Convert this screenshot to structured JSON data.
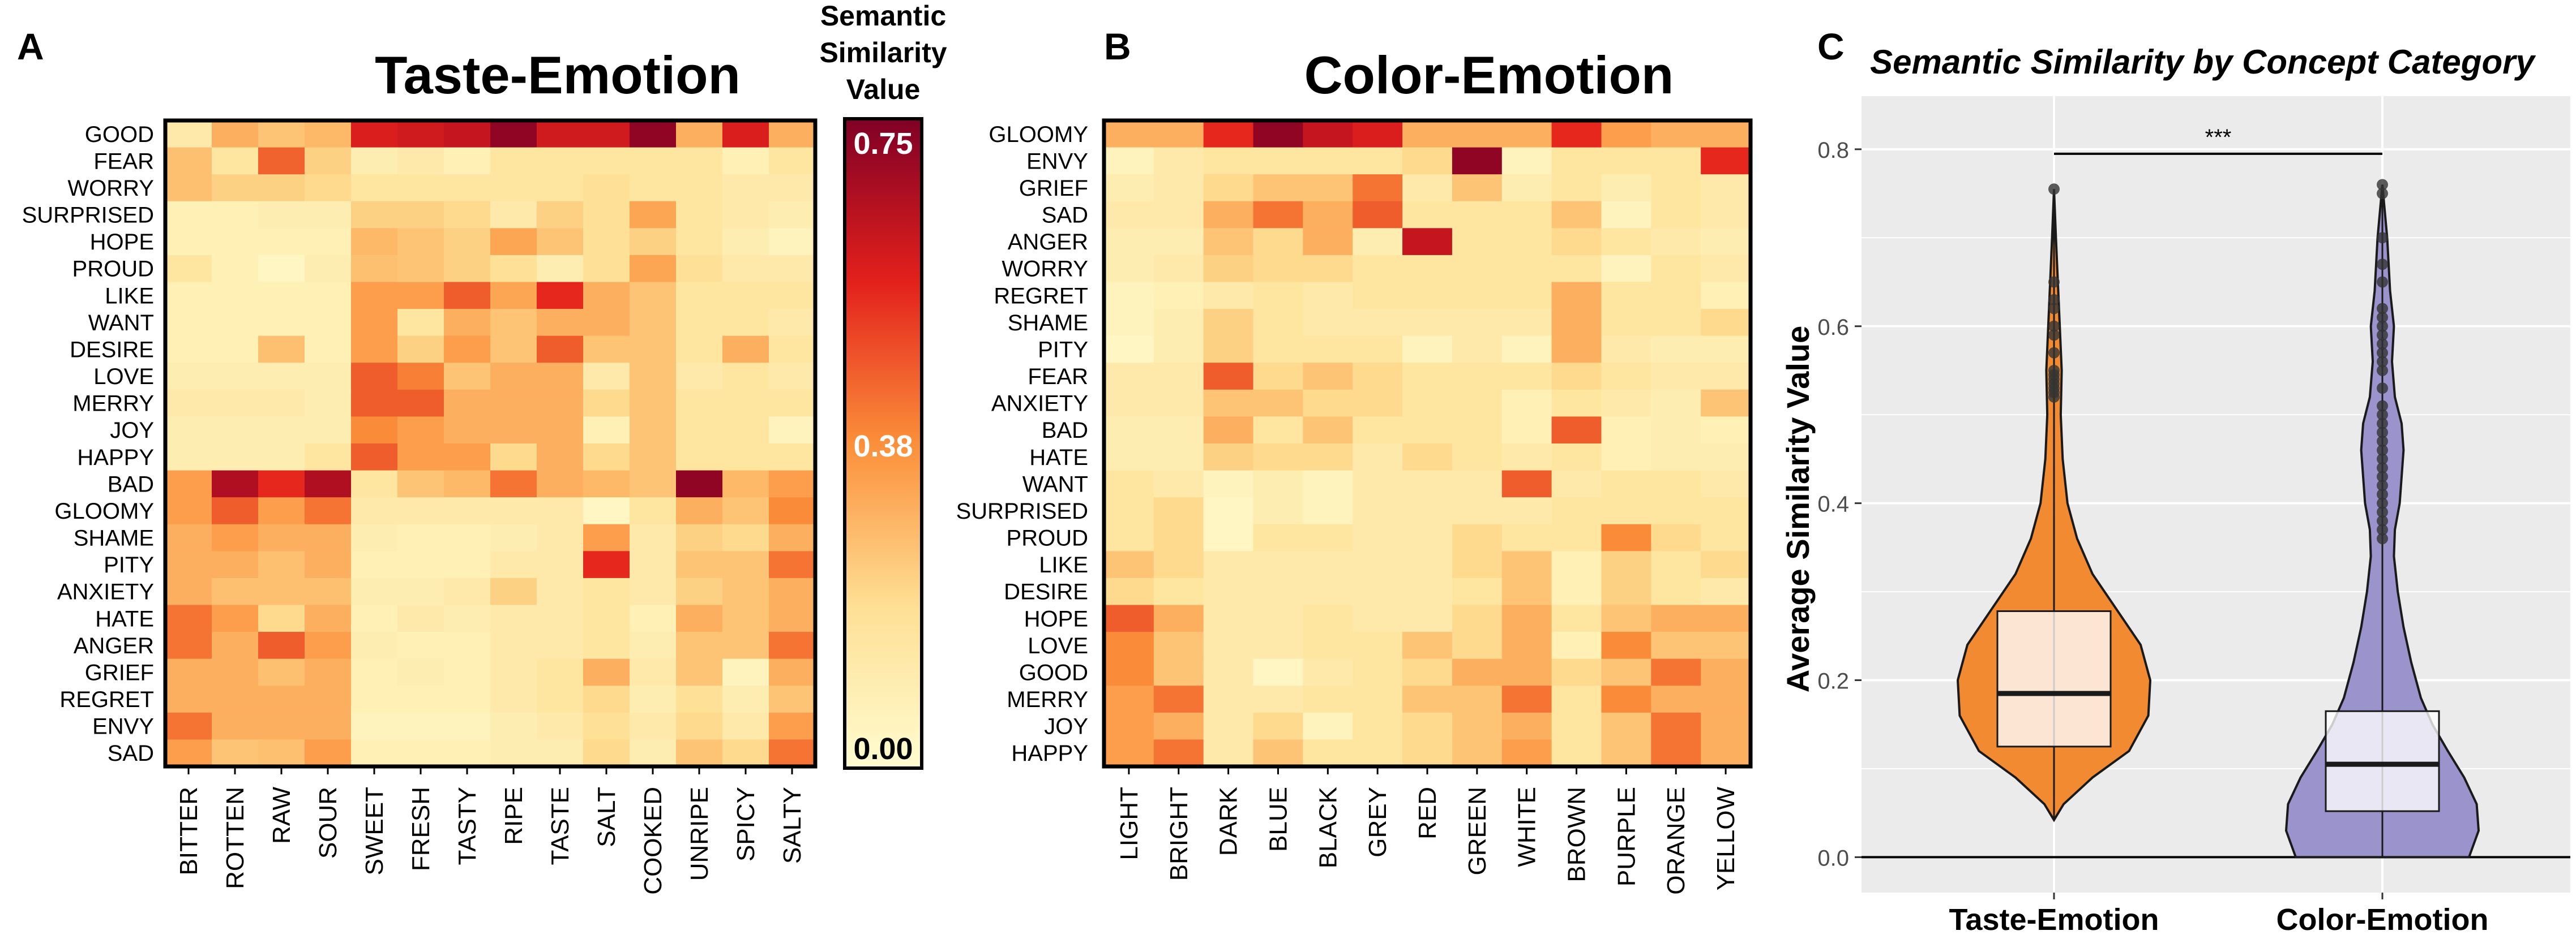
{
  "chart_data": [
    {
      "panel": "A",
      "type": "heatmap",
      "title": "Taste-Emotion",
      "rows": [
        "GOOD",
        "FEAR",
        "WORRY",
        "SURPRISED",
        "HOPE",
        "PROUD",
        "LIKE",
        "WANT",
        "DESIRE",
        "LOVE",
        "MERRY",
        "JOY",
        "HAPPY",
        "BAD",
        "GLOOMY",
        "SHAME",
        "PITY",
        "ANXIETY",
        "HATE",
        "ANGER",
        "GRIEF",
        "REGRET",
        "ENVY",
        "SAD"
      ],
      "columns": [
        "BITTER",
        "ROTTEN",
        "RAW",
        "SOUR",
        "SWEET",
        "FRESH",
        "TASTY",
        "RIPE",
        "TASTE",
        "SALT",
        "COOKED",
        "UNRIPE",
        "SPICY",
        "SALTY"
      ],
      "values": [
        [
          0.12,
          0.3,
          0.25,
          0.28,
          0.58,
          0.6,
          0.62,
          0.72,
          0.6,
          0.6,
          0.72,
          0.3,
          0.58,
          0.3
        ],
        [
          0.26,
          0.15,
          0.45,
          0.22,
          0.1,
          0.12,
          0.08,
          0.15,
          0.15,
          0.15,
          0.15,
          0.15,
          0.08,
          0.15
        ],
        [
          0.26,
          0.22,
          0.22,
          0.2,
          0.15,
          0.15,
          0.15,
          0.15,
          0.15,
          0.18,
          0.15,
          0.15,
          0.12,
          0.12
        ],
        [
          0.08,
          0.08,
          0.1,
          0.1,
          0.22,
          0.22,
          0.2,
          0.12,
          0.22,
          0.18,
          0.32,
          0.15,
          0.12,
          0.1
        ],
        [
          0.08,
          0.08,
          0.08,
          0.08,
          0.28,
          0.25,
          0.22,
          0.32,
          0.25,
          0.18,
          0.22,
          0.15,
          0.1,
          0.06
        ],
        [
          0.15,
          0.08,
          0.04,
          0.1,
          0.26,
          0.25,
          0.22,
          0.18,
          0.1,
          0.18,
          0.32,
          0.18,
          0.12,
          0.12
        ],
        [
          0.08,
          0.08,
          0.08,
          0.08,
          0.34,
          0.34,
          0.46,
          0.32,
          0.55,
          0.3,
          0.25,
          0.15,
          0.15,
          0.15
        ],
        [
          0.08,
          0.08,
          0.08,
          0.08,
          0.34,
          0.15,
          0.3,
          0.25,
          0.3,
          0.3,
          0.25,
          0.15,
          0.15,
          0.12
        ],
        [
          0.08,
          0.08,
          0.26,
          0.08,
          0.34,
          0.22,
          0.34,
          0.25,
          0.46,
          0.25,
          0.25,
          0.15,
          0.3,
          0.15
        ],
        [
          0.1,
          0.1,
          0.1,
          0.1,
          0.46,
          0.4,
          0.25,
          0.3,
          0.3,
          0.12,
          0.25,
          0.12,
          0.15,
          0.12
        ],
        [
          0.12,
          0.12,
          0.12,
          0.1,
          0.46,
          0.46,
          0.3,
          0.3,
          0.3,
          0.2,
          0.25,
          0.15,
          0.15,
          0.15
        ],
        [
          0.1,
          0.1,
          0.1,
          0.1,
          0.38,
          0.34,
          0.3,
          0.3,
          0.3,
          0.08,
          0.25,
          0.15,
          0.15,
          0.06
        ],
        [
          0.1,
          0.1,
          0.1,
          0.15,
          0.46,
          0.34,
          0.34,
          0.2,
          0.3,
          0.2,
          0.25,
          0.15,
          0.15,
          0.15
        ],
        [
          0.34,
          0.66,
          0.55,
          0.66,
          0.15,
          0.25,
          0.28,
          0.42,
          0.3,
          0.28,
          0.25,
          0.72,
          0.28,
          0.34
        ],
        [
          0.34,
          0.46,
          0.34,
          0.42,
          0.12,
          0.12,
          0.12,
          0.12,
          0.12,
          0.04,
          0.15,
          0.3,
          0.25,
          0.38
        ],
        [
          0.3,
          0.34,
          0.3,
          0.3,
          0.1,
          0.08,
          0.08,
          0.1,
          0.12,
          0.34,
          0.12,
          0.22,
          0.2,
          0.3
        ],
        [
          0.3,
          0.3,
          0.26,
          0.3,
          0.08,
          0.08,
          0.08,
          0.12,
          0.12,
          0.55,
          0.12,
          0.25,
          0.25,
          0.42
        ],
        [
          0.3,
          0.26,
          0.26,
          0.26,
          0.1,
          0.1,
          0.12,
          0.22,
          0.12,
          0.15,
          0.12,
          0.22,
          0.25,
          0.3
        ],
        [
          0.42,
          0.34,
          0.2,
          0.3,
          0.08,
          0.12,
          0.1,
          0.12,
          0.12,
          0.15,
          0.08,
          0.3,
          0.25,
          0.3
        ],
        [
          0.42,
          0.3,
          0.46,
          0.34,
          0.1,
          0.08,
          0.08,
          0.12,
          0.12,
          0.15,
          0.1,
          0.25,
          0.25,
          0.42
        ],
        [
          0.3,
          0.3,
          0.26,
          0.3,
          0.08,
          0.1,
          0.08,
          0.12,
          0.15,
          0.3,
          0.12,
          0.25,
          0.06,
          0.3
        ],
        [
          0.3,
          0.3,
          0.3,
          0.3,
          0.08,
          0.08,
          0.08,
          0.12,
          0.15,
          0.2,
          0.1,
          0.18,
          0.1,
          0.25
        ],
        [
          0.42,
          0.3,
          0.3,
          0.3,
          0.06,
          0.06,
          0.06,
          0.1,
          0.12,
          0.18,
          0.12,
          0.2,
          0.12,
          0.34
        ],
        [
          0.34,
          0.25,
          0.26,
          0.34,
          0.08,
          0.08,
          0.08,
          0.1,
          0.1,
          0.2,
          0.1,
          0.25,
          0.2,
          0.42
        ]
      ]
    },
    {
      "panel": "B",
      "type": "heatmap",
      "title": "Color-Emotion",
      "rows": [
        "GLOOMY",
        "ENVY",
        "GRIEF",
        "SAD",
        "ANGER",
        "WORRY",
        "REGRET",
        "SHAME",
        "PITY",
        "FEAR",
        "ANXIETY",
        "BAD",
        "HATE",
        "WANT",
        "SURPRISED",
        "PROUD",
        "LIKE",
        "DESIRE",
        "HOPE",
        "LOVE",
        "GOOD",
        "MERRY",
        "JOY",
        "HAPPY"
      ],
      "columns": [
        "LIGHT",
        "BRIGHT",
        "DARK",
        "BLUE",
        "BLACK",
        "GREY",
        "RED",
        "GREEN",
        "WHITE",
        "BROWN",
        "PURPLE",
        "ORANGE",
        "YELLOW"
      ],
      "values": [
        [
          0.3,
          0.3,
          0.55,
          0.72,
          0.62,
          0.58,
          0.3,
          0.3,
          0.3,
          0.55,
          0.34,
          0.3,
          0.3
        ],
        [
          0.06,
          0.12,
          0.15,
          0.15,
          0.15,
          0.15,
          0.2,
          0.72,
          0.06,
          0.15,
          0.15,
          0.15,
          0.55
        ],
        [
          0.1,
          0.12,
          0.2,
          0.25,
          0.25,
          0.42,
          0.12,
          0.25,
          0.1,
          0.15,
          0.1,
          0.15,
          0.12
        ],
        [
          0.12,
          0.12,
          0.3,
          0.42,
          0.3,
          0.46,
          0.15,
          0.15,
          0.15,
          0.25,
          0.06,
          0.15,
          0.12
        ],
        [
          0.1,
          0.1,
          0.25,
          0.2,
          0.3,
          0.1,
          0.62,
          0.15,
          0.15,
          0.2,
          0.15,
          0.12,
          0.1
        ],
        [
          0.1,
          0.12,
          0.22,
          0.2,
          0.2,
          0.15,
          0.15,
          0.15,
          0.15,
          0.15,
          0.06,
          0.15,
          0.12
        ],
        [
          0.06,
          0.08,
          0.12,
          0.15,
          0.12,
          0.15,
          0.15,
          0.15,
          0.15,
          0.3,
          0.15,
          0.15,
          0.08
        ],
        [
          0.06,
          0.1,
          0.22,
          0.15,
          0.12,
          0.12,
          0.12,
          0.12,
          0.12,
          0.3,
          0.15,
          0.15,
          0.2
        ],
        [
          0.04,
          0.1,
          0.22,
          0.15,
          0.15,
          0.15,
          0.06,
          0.12,
          0.06,
          0.3,
          0.12,
          0.1,
          0.1
        ],
        [
          0.12,
          0.12,
          0.46,
          0.2,
          0.25,
          0.2,
          0.15,
          0.15,
          0.15,
          0.2,
          0.15,
          0.12,
          0.12
        ],
        [
          0.12,
          0.12,
          0.25,
          0.25,
          0.2,
          0.2,
          0.15,
          0.15,
          0.08,
          0.15,
          0.12,
          0.1,
          0.25
        ],
        [
          0.1,
          0.1,
          0.3,
          0.15,
          0.25,
          0.15,
          0.15,
          0.15,
          0.08,
          0.46,
          0.08,
          0.1,
          0.08
        ],
        [
          0.1,
          0.1,
          0.22,
          0.2,
          0.2,
          0.12,
          0.2,
          0.15,
          0.12,
          0.15,
          0.08,
          0.1,
          0.1
        ],
        [
          0.15,
          0.12,
          0.06,
          0.1,
          0.06,
          0.12,
          0.12,
          0.12,
          0.46,
          0.12,
          0.15,
          0.15,
          0.12
        ],
        [
          0.15,
          0.2,
          0.04,
          0.1,
          0.06,
          0.12,
          0.12,
          0.12,
          0.12,
          0.15,
          0.15,
          0.15,
          0.15
        ],
        [
          0.15,
          0.2,
          0.04,
          0.15,
          0.15,
          0.12,
          0.12,
          0.2,
          0.15,
          0.15,
          0.38,
          0.2,
          0.15
        ],
        [
          0.25,
          0.2,
          0.12,
          0.12,
          0.12,
          0.12,
          0.12,
          0.2,
          0.25,
          0.08,
          0.22,
          0.15,
          0.2
        ],
        [
          0.2,
          0.15,
          0.12,
          0.12,
          0.12,
          0.12,
          0.12,
          0.15,
          0.25,
          0.08,
          0.22,
          0.15,
          0.12
        ],
        [
          0.46,
          0.3,
          0.12,
          0.12,
          0.15,
          0.12,
          0.12,
          0.2,
          0.3,
          0.15,
          0.25,
          0.3,
          0.3
        ],
        [
          0.38,
          0.25,
          0.12,
          0.12,
          0.15,
          0.15,
          0.25,
          0.2,
          0.3,
          0.08,
          0.38,
          0.25,
          0.25
        ],
        [
          0.38,
          0.25,
          0.12,
          0.04,
          0.12,
          0.15,
          0.2,
          0.3,
          0.3,
          0.2,
          0.25,
          0.42,
          0.3
        ],
        [
          0.34,
          0.42,
          0.12,
          0.12,
          0.15,
          0.15,
          0.25,
          0.25,
          0.42,
          0.15,
          0.38,
          0.3,
          0.3
        ],
        [
          0.34,
          0.3,
          0.12,
          0.2,
          0.06,
          0.15,
          0.2,
          0.25,
          0.3,
          0.15,
          0.25,
          0.42,
          0.3
        ],
        [
          0.34,
          0.42,
          0.12,
          0.25,
          0.15,
          0.15,
          0.2,
          0.25,
          0.34,
          0.15,
          0.25,
          0.42,
          0.3
        ]
      ]
    },
    {
      "panel": "C",
      "type": "violin+box",
      "title": "Semantic Similarity by Concept Category",
      "ylabel": "Average Similarity Value",
      "xlabel": "",
      "categories": [
        "Taste-Emotion",
        "Color-Emotion"
      ],
      "ylim": [
        -0.04,
        0.86
      ],
      "yticks": [
        0.0,
        0.2,
        0.4,
        0.6,
        0.8
      ],
      "ytick_labels": [
        "0.0",
        "0.2",
        "0.4",
        "0.6",
        "0.8"
      ],
      "significance": "***",
      "series": [
        {
          "name": "Taste-Emotion",
          "color": "#f28a32",
          "box": {
            "q1": 0.125,
            "median": 0.185,
            "q3": 0.278,
            "whisker_low": 0.042,
            "whisker_high": 0.755
          },
          "violin_profile": [
            [
              0.042,
              0.0
            ],
            [
              0.06,
              0.1
            ],
            [
              0.09,
              0.4
            ],
            [
              0.12,
              0.78
            ],
            [
              0.16,
              0.98
            ],
            [
              0.2,
              1.0
            ],
            [
              0.24,
              0.9
            ],
            [
              0.28,
              0.65
            ],
            [
              0.32,
              0.4
            ],
            [
              0.36,
              0.24
            ],
            [
              0.4,
              0.14
            ],
            [
              0.45,
              0.09
            ],
            [
              0.5,
              0.07
            ],
            [
              0.55,
              0.08
            ],
            [
              0.6,
              0.06
            ],
            [
              0.65,
              0.04
            ],
            [
              0.7,
              0.02
            ],
            [
              0.755,
              0.0
            ]
          ],
          "outliers": [
            0.755,
            0.65,
            0.63,
            0.62,
            0.6,
            0.59,
            0.57,
            0.55,
            0.545,
            0.54,
            0.535,
            0.53,
            0.525,
            0.52
          ]
        },
        {
          "name": "Color-Emotion",
          "color": "#9b93cc",
          "box": {
            "q1": 0.052,
            "median": 0.105,
            "q3": 0.165,
            "whisker_low": 0.0,
            "whisker_high": 0.76
          },
          "violin_profile": [
            [
              0.0,
              0.9
            ],
            [
              0.03,
              1.0
            ],
            [
              0.06,
              0.98
            ],
            [
              0.09,
              0.85
            ],
            [
              0.12,
              0.68
            ],
            [
              0.15,
              0.52
            ],
            [
              0.18,
              0.4
            ],
            [
              0.22,
              0.3
            ],
            [
              0.26,
              0.22
            ],
            [
              0.3,
              0.16
            ],
            [
              0.34,
              0.12
            ],
            [
              0.37,
              0.13
            ],
            [
              0.4,
              0.18
            ],
            [
              0.43,
              0.2
            ],
            [
              0.46,
              0.22
            ],
            [
              0.49,
              0.2
            ],
            [
              0.52,
              0.13
            ],
            [
              0.56,
              0.1
            ],
            [
              0.6,
              0.12
            ],
            [
              0.64,
              0.08
            ],
            [
              0.7,
              0.05
            ],
            [
              0.76,
              0.0
            ]
          ],
          "outliers": [
            0.76,
            0.75,
            0.7,
            0.67,
            0.65,
            0.62,
            0.61,
            0.6,
            0.59,
            0.58,
            0.57,
            0.56,
            0.55,
            0.53,
            0.51,
            0.5,
            0.49,
            0.48,
            0.47,
            0.46,
            0.45,
            0.44,
            0.43,
            0.42,
            0.41,
            0.4,
            0.39,
            0.38,
            0.37,
            0.36
          ]
        }
      ]
    }
  ],
  "colorbar": {
    "title": [
      "Semantic",
      "Similarity",
      "Value"
    ],
    "tick_labels": [
      "0.75",
      "0.38",
      "0.00"
    ],
    "tick_values": [
      0.75,
      0.38,
      0.0
    ],
    "min": 0.0,
    "max": 0.75,
    "colors": [
      "#fffcd0",
      "#fedf94",
      "#fb8f3a",
      "#e3201c",
      "#800026"
    ]
  },
  "panel_labels": [
    "A",
    "B",
    "C"
  ]
}
